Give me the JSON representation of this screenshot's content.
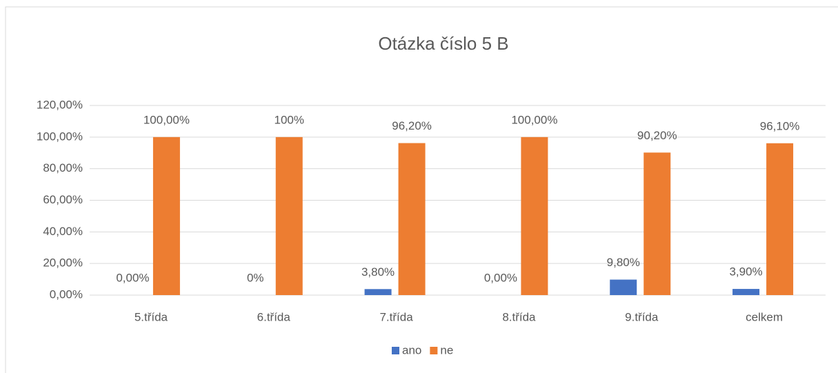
{
  "chart_data": {
    "type": "bar",
    "title": "Otázka číslo 5 B",
    "categories": [
      "5.třída",
      "6.třída",
      "7.třída",
      "8.třída",
      "9.třída",
      "celkem"
    ],
    "series": [
      {
        "name": "ano",
        "color": "#4472c4",
        "values": [
          0,
          0,
          3.8,
          0,
          9.8,
          3.9
        ],
        "value_labels": [
          "0,00%",
          "0%",
          "3,80%",
          "0,00%",
          "9,80%",
          "3,90%"
        ]
      },
      {
        "name": "ne",
        "color": "#ed7d31",
        "values": [
          100,
          100,
          96.2,
          100,
          90.2,
          96.1
        ],
        "value_labels": [
          "100,00%",
          "100%",
          "96,20%",
          "100,00%",
          "90,20%",
          "96,10%"
        ]
      }
    ],
    "ylim": [
      0,
      120
    ],
    "yticks": [
      {
        "value": 0,
        "label": "0,00%"
      },
      {
        "value": 20,
        "label": "20,00%"
      },
      {
        "value": 40,
        "label": "40,00%"
      },
      {
        "value": 60,
        "label": "60,00%"
      },
      {
        "value": 80,
        "label": "80,00%"
      },
      {
        "value": 100,
        "label": "100,00%"
      },
      {
        "value": 120,
        "label": "120,00%"
      }
    ],
    "grid": true,
    "legend": "bottom"
  }
}
